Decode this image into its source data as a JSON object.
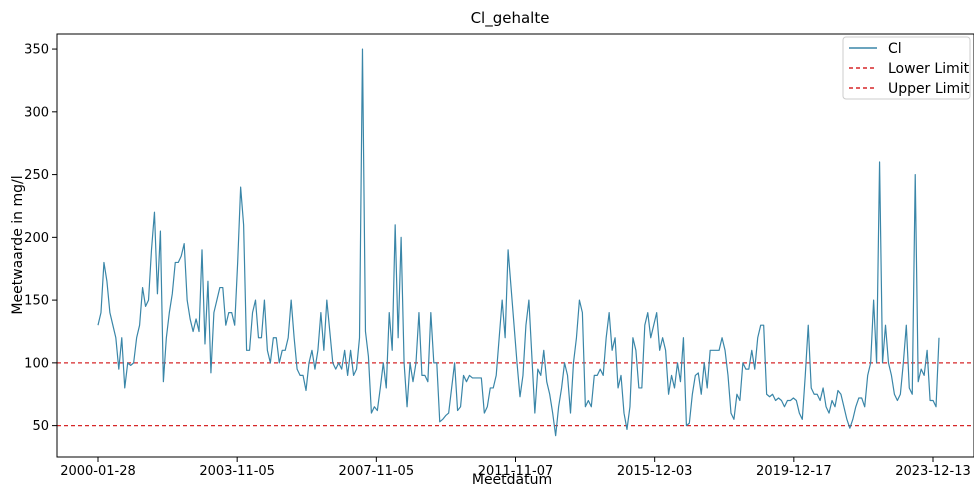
{
  "chart_data": {
    "type": "line",
    "title": "Cl_gehalte",
    "xlabel": "Meetdatum",
    "ylabel": "Meetwaarde in mg/l",
    "ylim": [
      25,
      362
    ],
    "yticks": [
      50,
      100,
      150,
      200,
      250,
      300,
      350
    ],
    "xticks": [
      "2000-01-28",
      "2003-11-05",
      "2007-11-05",
      "2011-11-07",
      "2015-12-03",
      "2019-12-17",
      "2023-12-13"
    ],
    "grid": false,
    "legend_position": "top-right",
    "legend": [
      "Cl",
      "Lower Limit",
      "Upper Limit"
    ],
    "colors": {
      "series": "#3a86a8",
      "limits": "#d62728"
    },
    "lower_limit": 50,
    "upper_limit": 100,
    "series": [
      {
        "name": "Cl",
        "values": [
          130,
          140,
          180,
          165,
          140,
          130,
          120,
          95,
          120,
          80,
          100,
          98,
          100,
          120,
          130,
          160,
          145,
          150,
          190,
          220,
          155,
          205,
          85,
          120,
          140,
          155,
          180,
          180,
          185,
          195,
          150,
          135,
          125,
          135,
          125,
          190,
          115,
          165,
          92,
          140,
          150,
          160,
          160,
          130,
          140,
          140,
          130,
          180,
          240,
          210,
          110,
          110,
          140,
          150,
          120,
          120,
          150,
          110,
          100,
          120,
          120,
          100,
          110,
          110,
          120,
          150,
          120,
          95,
          90,
          90,
          78,
          100,
          110,
          95,
          110,
          140,
          110,
          150,
          125,
          100,
          95,
          100,
          95,
          110,
          90,
          110,
          90,
          95,
          120,
          350,
          125,
          105,
          60,
          65,
          62,
          80,
          100,
          80,
          140,
          110,
          210,
          120,
          200,
          100,
          65,
          100,
          85,
          100,
          140,
          90,
          90,
          85,
          140,
          100,
          100,
          53,
          55,
          58,
          60,
          80,
          100,
          62,
          65,
          90,
          85,
          90,
          88,
          88,
          88,
          88,
          60,
          65,
          80,
          80,
          90,
          120,
          150,
          120,
          190,
          160,
          130,
          100,
          73,
          90,
          130,
          150,
          105,
          60,
          95,
          90,
          110,
          85,
          75,
          60,
          42,
          65,
          80,
          100,
          90,
          60,
          100,
          120,
          150,
          140,
          65,
          70,
          65,
          90,
          90,
          95,
          90,
          120,
          140,
          110,
          120,
          80,
          90,
          60,
          47,
          65,
          120,
          110,
          80,
          80,
          130,
          140,
          120,
          130,
          140,
          110,
          120,
          110,
          75,
          90,
          80,
          100,
          85,
          120,
          50,
          52,
          75,
          90,
          92,
          75,
          100,
          80,
          110,
          110,
          110,
          110,
          120,
          110,
          90,
          60,
          55,
          75,
          70,
          100,
          95,
          95,
          110,
          95,
          120,
          130,
          130,
          75,
          73,
          75,
          70,
          72,
          70,
          65,
          70,
          70,
          72,
          70,
          60,
          55,
          90,
          130,
          80,
          75,
          75,
          70,
          80,
          65,
          60,
          70,
          65,
          78,
          75,
          65,
          55,
          48,
          55,
          65,
          72,
          72,
          65,
          90,
          100,
          150,
          100,
          260,
          100,
          130,
          100,
          90,
          75,
          70,
          75,
          100,
          130,
          80,
          75,
          250,
          85,
          95,
          90,
          110,
          70,
          70,
          65,
          120
        ]
      }
    ]
  }
}
